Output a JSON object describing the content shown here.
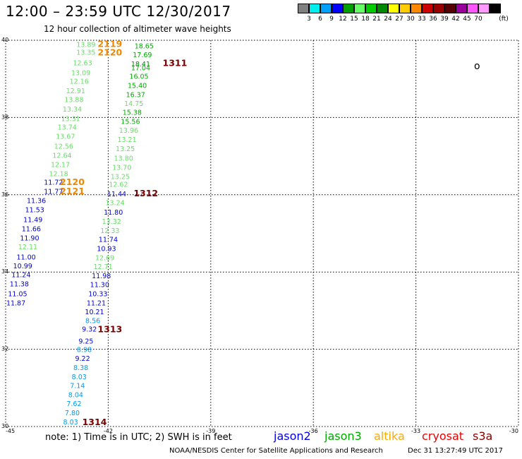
{
  "header": {
    "title": "12:00 – 23:59 UTC 12/30/2017",
    "subtitle": "12 hour collection of altimeter wave heights"
  },
  "colorbar": {
    "colors": [
      "#808080",
      "#00eeee",
      "#00a0ff",
      "#0000ff",
      "#00a000",
      "#66ff66",
      "#00cc00",
      "#008800",
      "#ffff00",
      "#ffcc00",
      "#ff8800",
      "#cc0000",
      "#990000",
      "#550000",
      "#990099",
      "#ff55ff",
      "#ff99ff",
      "#000000"
    ],
    "labels": [
      "3",
      "6",
      "9",
      "12",
      "15",
      "18",
      "21",
      "24",
      "27",
      "30",
      "33",
      "36",
      "39",
      "42",
      "45",
      "70"
    ],
    "unit": "(ft)"
  },
  "map": {
    "lon_ticks": [
      "-45",
      "-42",
      "-39",
      "-36",
      "-33",
      "-30"
    ],
    "lat_ticks": [
      "40",
      "38",
      "36",
      "34",
      "32",
      "30"
    ],
    "lon_values": [
      -45,
      -42,
      -39,
      -36,
      -33,
      -30
    ],
    "lat_values": [
      40,
      38,
      36,
      34,
      32,
      30
    ],
    "island_label": "o",
    "observations": [
      {
        "text": "13.89",
        "lat": 39.9,
        "lon": -42.65,
        "color": "#66dd66"
      },
      {
        "text": "13.35",
        "lat": 39.7,
        "lon": -42.65,
        "color": "#66dd66"
      },
      {
        "text": "12.63",
        "lat": 39.42,
        "lon": -42.75,
        "color": "#66dd66"
      },
      {
        "text": "13.09",
        "lat": 39.17,
        "lon": -42.8,
        "color": "#66dd66"
      },
      {
        "text": "12.16",
        "lat": 38.95,
        "lon": -42.85,
        "color": "#66dd66"
      },
      {
        "text": "12.91",
        "lat": 38.7,
        "lon": -42.95,
        "color": "#66dd66"
      },
      {
        "text": "13.88",
        "lat": 38.47,
        "lon": -43.0,
        "color": "#66dd66"
      },
      {
        "text": "13.34",
        "lat": 38.23,
        "lon": -43.05,
        "color": "#66dd66"
      },
      {
        "text": "13.31",
        "lat": 37.98,
        "lon": -43.1,
        "color": "#66dd66"
      },
      {
        "text": "13.74",
        "lat": 37.76,
        "lon": -43.2,
        "color": "#66dd66"
      },
      {
        "text": "13.67",
        "lat": 37.52,
        "lon": -43.25,
        "color": "#66dd66"
      },
      {
        "text": "12.56",
        "lat": 37.27,
        "lon": -43.3,
        "color": "#66dd66"
      },
      {
        "text": "12.64",
        "lat": 37.03,
        "lon": -43.35,
        "color": "#66dd66"
      },
      {
        "text": "12.17",
        "lat": 36.79,
        "lon": -43.4,
        "color": "#66dd66"
      },
      {
        "text": "12.18",
        "lat": 36.55,
        "lon": -43.45,
        "color": "#66dd66"
      },
      {
        "text": "11.72",
        "lat": 36.33,
        "lon": -43.6,
        "color": "#0000cc"
      },
      {
        "text": "11.77",
        "lat": 36.1,
        "lon": -43.6,
        "color": "#0000cc"
      },
      {
        "text": "11.36",
        "lat": 35.86,
        "lon": -44.1,
        "color": "#0000cc"
      },
      {
        "text": "11.53",
        "lat": 35.62,
        "lon": -44.15,
        "color": "#0000cc"
      },
      {
        "text": "11.49",
        "lat": 35.37,
        "lon": -44.2,
        "color": "#0000cc"
      },
      {
        "text": "11.66",
        "lat": 35.13,
        "lon": -44.25,
        "color": "#0000cc"
      },
      {
        "text": "11.90",
        "lat": 34.89,
        "lon": -44.3,
        "color": "#0000cc"
      },
      {
        "text": "12.11",
        "lat": 34.66,
        "lon": -44.35,
        "color": "#66dd66"
      },
      {
        "text": "11.00",
        "lat": 34.4,
        "lon": -44.4,
        "color": "#0000cc"
      },
      {
        "text": "10.99",
        "lat": 34.17,
        "lon": -44.5,
        "color": "#0000cc"
      },
      {
        "text": "11.24",
        "lat": 33.94,
        "lon": -44.55,
        "color": "#0000cc"
      },
      {
        "text": "11.38",
        "lat": 33.7,
        "lon": -44.6,
        "color": "#0000cc"
      },
      {
        "text": "11.05",
        "lat": 33.45,
        "lon": -44.65,
        "color": "#0000cc"
      },
      {
        "text": "11.87",
        "lat": 33.21,
        "lon": -44.7,
        "color": "#0000cc"
      },
      {
        "text": "18.65",
        "lat": 39.86,
        "lon": -40.95,
        "color": "#00aa00"
      },
      {
        "text": "17.69",
        "lat": 39.63,
        "lon": -41.0,
        "color": "#00aa00"
      },
      {
        "text": "18.41",
        "lat": 39.4,
        "lon": -41.05,
        "color": "#008800"
      },
      {
        "text": "17.04",
        "lat": 39.3,
        "lon": -41.05,
        "color": "#00aa00"
      },
      {
        "text": "16.05",
        "lat": 39.08,
        "lon": -41.1,
        "color": "#00aa00"
      },
      {
        "text": "15.40",
        "lat": 38.84,
        "lon": -41.15,
        "color": "#00aa00"
      },
      {
        "text": "16.37",
        "lat": 38.6,
        "lon": -41.2,
        "color": "#00aa00"
      },
      {
        "text": "14.75",
        "lat": 38.37,
        "lon": -41.25,
        "color": "#66dd66"
      },
      {
        "text": "15.38",
        "lat": 38.14,
        "lon": -41.3,
        "color": "#00aa00"
      },
      {
        "text": "15.56",
        "lat": 37.91,
        "lon": -41.35,
        "color": "#00aa00"
      },
      {
        "text": "13.96",
        "lat": 37.68,
        "lon": -41.4,
        "color": "#66dd66"
      },
      {
        "text": "13.21",
        "lat": 37.44,
        "lon": -41.45,
        "color": "#66dd66"
      },
      {
        "text": "13.25",
        "lat": 37.2,
        "lon": -41.5,
        "color": "#66dd66"
      },
      {
        "text": "13.80",
        "lat": 36.96,
        "lon": -41.55,
        "color": "#66dd66"
      },
      {
        "text": "13.70",
        "lat": 36.72,
        "lon": -41.6,
        "color": "#66dd66"
      },
      {
        "text": "13.25",
        "lat": 36.48,
        "lon": -41.65,
        "color": "#66dd66"
      },
      {
        "text": "12.62",
        "lat": 36.28,
        "lon": -41.7,
        "color": "#66dd66"
      },
      {
        "text": "11.44",
        "lat": 36.03,
        "lon": -41.75,
        "color": "#0000cc"
      },
      {
        "text": "13.24",
        "lat": 35.8,
        "lon": -41.8,
        "color": "#66dd66"
      },
      {
        "text": "11.80",
        "lat": 35.56,
        "lon": -41.85,
        "color": "#0000cc"
      },
      {
        "text": "13.32",
        "lat": 35.32,
        "lon": -41.9,
        "color": "#66dd66"
      },
      {
        "text": "12.33",
        "lat": 35.08,
        "lon": -41.95,
        "color": "#66dd66"
      },
      {
        "text": "11.74",
        "lat": 34.85,
        "lon": -42.0,
        "color": "#0000cc"
      },
      {
        "text": "10.93",
        "lat": 34.62,
        "lon": -42.05,
        "color": "#0000cc"
      },
      {
        "text": "12.69",
        "lat": 34.38,
        "lon": -42.1,
        "color": "#66dd66"
      },
      {
        "text": "12.71",
        "lat": 34.15,
        "lon": -42.15,
        "color": "#66dd66"
      },
      {
        "text": "11.98",
        "lat": 33.91,
        "lon": -42.2,
        "color": "#0000cc"
      },
      {
        "text": "11.30",
        "lat": 33.68,
        "lon": -42.25,
        "color": "#0000cc"
      },
      {
        "text": "10.33",
        "lat": 33.45,
        "lon": -42.3,
        "color": "#0000cc"
      },
      {
        "text": "11.21",
        "lat": 33.21,
        "lon": -42.35,
        "color": "#0000cc"
      },
      {
        "text": "10.21",
        "lat": 32.98,
        "lon": -42.4,
        "color": "#0000cc"
      },
      {
        "text": "8.56",
        "lat": 32.75,
        "lon": -42.45,
        "color": "#0099ee"
      },
      {
        "text": "9.32",
        "lat": 32.53,
        "lon": -42.55,
        "color": "#0000cc"
      },
      {
        "text": "9.25",
        "lat": 32.22,
        "lon": -42.65,
        "color": "#0000cc"
      },
      {
        "text": "8.98",
        "lat": 32.0,
        "lon": -42.7,
        "color": "#0099ee"
      },
      {
        "text": "9.22",
        "lat": 31.77,
        "lon": -42.75,
        "color": "#0000cc"
      },
      {
        "text": "8.38",
        "lat": 31.54,
        "lon": -42.8,
        "color": "#0099ee"
      },
      {
        "text": "8.03",
        "lat": 31.3,
        "lon": -42.85,
        "color": "#0099ee"
      },
      {
        "text": "7.14",
        "lat": 31.07,
        "lon": -42.9,
        "color": "#0099ee"
      },
      {
        "text": "8.04",
        "lat": 30.83,
        "lon": -42.95,
        "color": "#0099ee"
      },
      {
        "text": "7.62",
        "lat": 30.6,
        "lon": -43.0,
        "color": "#0099ee"
      },
      {
        "text": "7.80",
        "lat": 30.37,
        "lon": -43.05,
        "color": "#0099ee"
      },
      {
        "text": "8.03",
        "lat": 30.13,
        "lon": -43.1,
        "color": "#0099ee"
      }
    ],
    "pass_labels": [
      {
        "text": "2119",
        "lat": 39.92,
        "lon": -41.95,
        "color": "#ee8800"
      },
      {
        "text": "2120",
        "lat": 39.7,
        "lon": -41.95,
        "color": "#ee8800"
      },
      {
        "text": "1311",
        "lat": 39.42,
        "lon": -40.05,
        "color": "#770000"
      },
      {
        "text": "2120",
        "lat": 36.34,
        "lon": -43.05,
        "color": "#ee8800"
      },
      {
        "text": "2121",
        "lat": 36.11,
        "lon": -43.05,
        "color": "#ee8800"
      },
      {
        "text": "1312",
        "lat": 36.05,
        "lon": -40.9,
        "color": "#770000"
      },
      {
        "text": "1313",
        "lat": 32.53,
        "lon": -41.95,
        "color": "#770000"
      },
      {
        "text": "1314",
        "lat": 30.13,
        "lon": -42.4,
        "color": "#770000"
      }
    ]
  },
  "legend": {
    "note": "note: 1) Time is in UTC; 2) SWH is in feet",
    "missions": [
      {
        "name": "jason2",
        "color": "#0000ee"
      },
      {
        "name": "jason3",
        "color": "#00aa00"
      },
      {
        "name": "altika",
        "color": "#ffaa00"
      },
      {
        "name": "cryosat",
        "color": "#ee0000"
      },
      {
        "name": "s3a",
        "color": "#880000"
      }
    ]
  },
  "footer": {
    "credit": "NOAA/NESDIS Center for Satellite Applications and Research",
    "timestamp": "Dec 31 13:27:49 UTC 2017"
  }
}
